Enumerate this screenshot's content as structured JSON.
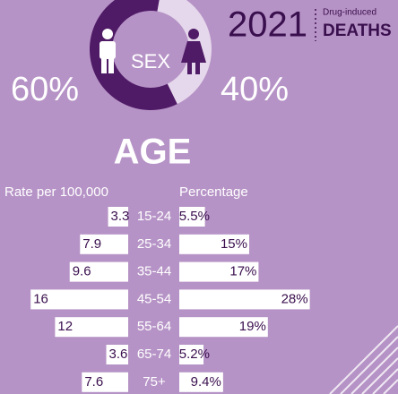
{
  "header": {
    "year": "2021",
    "line1": "Drug-induced",
    "line2": "DEATHS"
  },
  "chart_data": [
    {
      "type": "pie",
      "title": "SEX",
      "values": [
        60,
        40
      ],
      "value_labels": [
        "60%",
        "40%"
      ],
      "colors": [
        "#4f1a66",
        "#e6d8ec"
      ]
    },
    {
      "type": "butterfly",
      "title": "AGE",
      "categories": [
        "15-24",
        "25-34",
        "35-44",
        "45-54",
        "55-64",
        "65-74",
        "75+"
      ],
      "series": [
        {
          "name": "Rate per 100,000",
          "color": "#ffffff",
          "values": [
            3.3,
            7.9,
            9.6,
            16,
            12,
            3.6,
            7.6
          ]
        },
        {
          "name": "Percentage",
          "color": "#ffffff",
          "values": [
            5.5,
            15,
            17,
            28,
            19,
            5.2,
            9.4
          ],
          "value_labels": [
            "5.5%",
            "15%",
            "17%",
            "28%",
            "19%",
            "5.2%",
            "9.4%"
          ]
        }
      ]
    }
  ]
}
